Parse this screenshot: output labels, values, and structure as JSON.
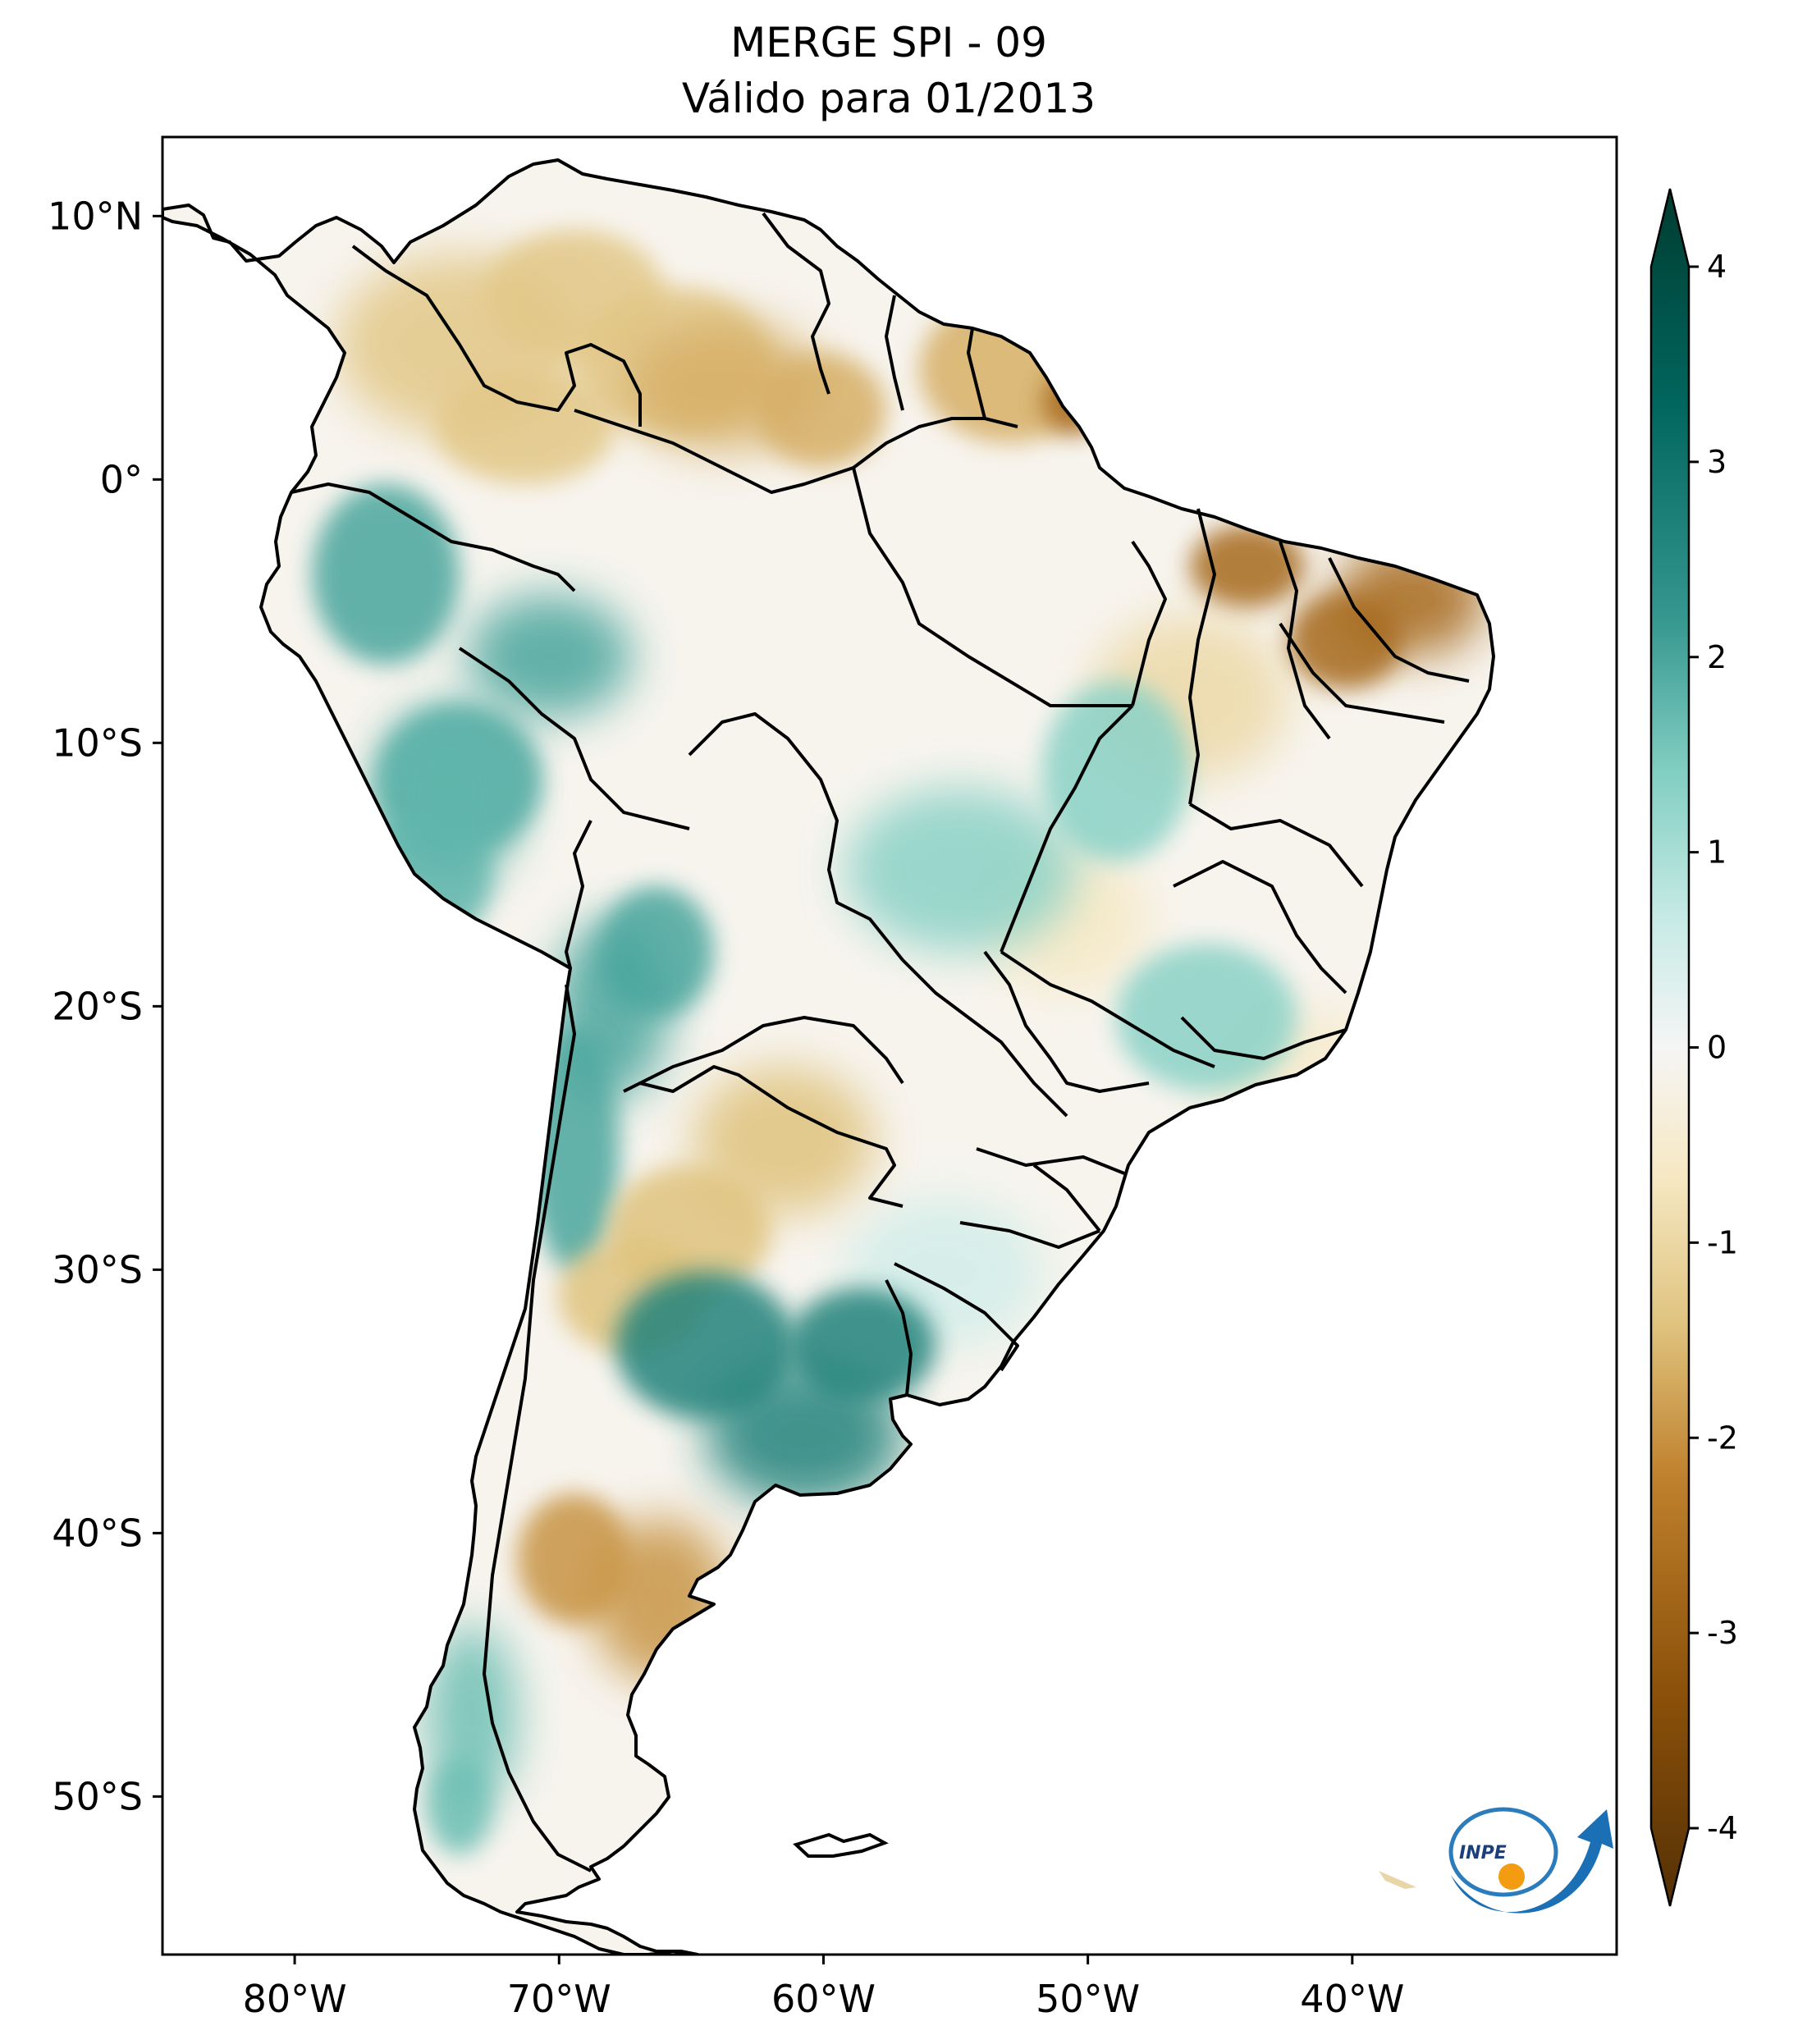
{
  "title": {
    "line1": "MERGE   SPI - 09",
    "line2": "Válido para 01/2013"
  },
  "map": {
    "lon_range": [
      -85,
      -30
    ],
    "lat_range": [
      -56,
      13
    ],
    "lon_ticks": [
      {
        "value": -80,
        "label": "80°W"
      },
      {
        "value": -70,
        "label": "70°W"
      },
      {
        "value": -60,
        "label": "60°W"
      },
      {
        "value": -50,
        "label": "50°W"
      },
      {
        "value": -40,
        "label": "40°W"
      }
    ],
    "lat_ticks": [
      {
        "value": 10,
        "label": "10°N"
      },
      {
        "value": 0,
        "label": "0°"
      },
      {
        "value": -10,
        "label": "10°S"
      },
      {
        "value": -20,
        "label": "20°S"
      },
      {
        "value": -30,
        "label": "30°S"
      },
      {
        "value": -40,
        "label": "40°S"
      },
      {
        "value": -50,
        "label": "50°S"
      }
    ],
    "anomaly_regions": [
      {
        "name": "north-colombia-venezuela",
        "value": -1.2
      },
      {
        "name": "guianas",
        "value": -1.5
      },
      {
        "name": "northeast-brazil-coast",
        "value": -2.5
      },
      {
        "name": "western-amazon",
        "value": 1.8
      },
      {
        "name": "peru",
        "value": 1.6
      },
      {
        "name": "central-brazil",
        "value": 1.2
      },
      {
        "name": "bolivia-andes",
        "value": 1.8
      },
      {
        "name": "paraguay-chaco",
        "value": -1.3
      },
      {
        "name": "pampas",
        "value": 2.4
      },
      {
        "name": "patagonia",
        "value": -1.8
      },
      {
        "name": "southern-chile",
        "value": 1.5
      }
    ]
  },
  "colorbar": {
    "min": -4,
    "max": 4,
    "extend": "both",
    "ticks": [
      {
        "value": 4,
        "label": "4"
      },
      {
        "value": 3,
        "label": "3"
      },
      {
        "value": 2,
        "label": "2"
      },
      {
        "value": 1,
        "label": "1"
      },
      {
        "value": 0,
        "label": "0"
      },
      {
        "value": -1,
        "label": "-1"
      },
      {
        "value": -2,
        "label": "-2"
      },
      {
        "value": -3,
        "label": "-3"
      },
      {
        "value": -4,
        "label": "-4"
      }
    ],
    "colors": {
      "dry_extreme": "#543005",
      "dry_strong": "#8c510a",
      "dry_moderate": "#bf812d",
      "dry_mild": "#dfc27d",
      "dry_weak": "#f6e8c3",
      "neutral": "#f5f5f5",
      "wet_weak": "#c7eae5",
      "wet_mild": "#80cdc1",
      "wet_moderate": "#35978f",
      "wet_strong": "#01665e",
      "wet_extreme": "#003c30"
    }
  },
  "logo": {
    "text": "INPE"
  }
}
